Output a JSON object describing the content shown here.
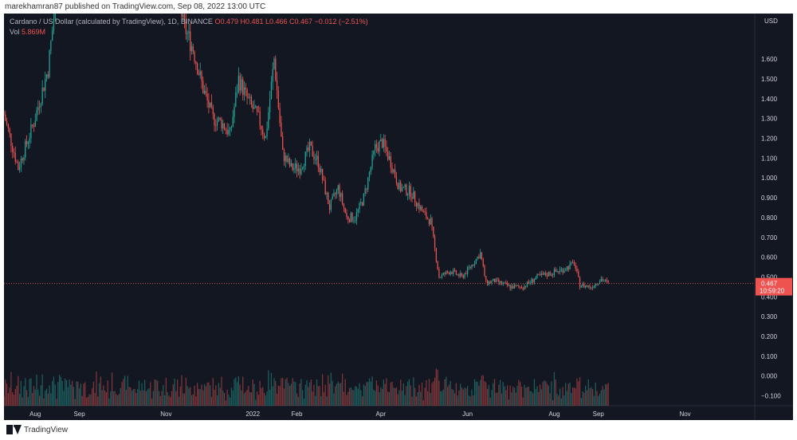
{
  "caption": "marekhamran87 published on TradingView.com, Sep 08, 2022 13:00 UTC",
  "legend": {
    "symbol": "Cardano / US Dollar (calculated by TradingView), 1D, BINANCE",
    "ohlc": "O0.479 H0.481 L0.466 C0.467 −0.012 (−2.51%)",
    "vol_label": "Vol",
    "vol_value": "5.869M"
  },
  "footer": {
    "brand": "TradingView"
  },
  "colors": {
    "up": "#26a69a",
    "down": "#ef5350",
    "bg": "#131722",
    "axis_text": "#d1d4dc",
    "price_line": "#ef5350"
  },
  "chart_data": {
    "type": "candlestick",
    "title": "Cardano / US Dollar (calculated by TradingView), 1D, BINANCE",
    "y_unit": "USD",
    "ylim": [
      -0.15,
      1.83
    ],
    "y_ticks": [
      -0.1,
      0.0,
      0.1,
      0.2,
      0.3,
      0.4,
      0.5,
      0.6,
      0.7,
      0.8,
      0.9,
      1.0,
      1.1,
      1.2,
      1.3,
      1.4,
      1.5,
      1.6
    ],
    "y_tick_labels": [
      "−0.100",
      "0.000",
      "0.100",
      "0.200",
      "0.300",
      "0.400",
      "0.500",
      "0.600",
      "0.700",
      "0.800",
      "0.900",
      "1.000",
      "1.100",
      "1.200",
      "1.300",
      "1.400",
      "1.500",
      "1.600"
    ],
    "x_labels": [
      {
        "date": "2021-08-01",
        "label": "Aug"
      },
      {
        "date": "2021-09-01",
        "label": "Sep"
      },
      {
        "date": "2021-11-01",
        "label": "Nov"
      },
      {
        "date": "2022-01-01",
        "label": "2022"
      },
      {
        "date": "2022-02-01",
        "label": "Feb"
      },
      {
        "date": "2022-04-01",
        "label": "Apr"
      },
      {
        "date": "2022-06-01",
        "label": "Jun"
      },
      {
        "date": "2022-08-01",
        "label": "Aug"
      },
      {
        "date": "2022-09-01",
        "label": "Sep"
      },
      {
        "date": "2022-11-01",
        "label": "Nov"
      }
    ],
    "x_range": [
      "2021-07-10",
      "2022-12-20"
    ],
    "price_series": [
      {
        "date": "2021-07-10",
        "close": 1.32
      },
      {
        "date": "2021-07-20",
        "close": 1.05
      },
      {
        "date": "2021-07-31",
        "close": 1.28
      },
      {
        "date": "2021-08-10",
        "close": 1.55
      },
      {
        "date": "2021-08-20",
        "close": 2.2
      },
      {
        "date": "2021-09-02",
        "close": 2.9
      },
      {
        "date": "2021-09-20",
        "close": 2.2
      },
      {
        "date": "2021-10-05",
        "close": 2.2
      },
      {
        "date": "2021-10-25",
        "close": 2.1
      },
      {
        "date": "2021-11-08",
        "close": 2.0
      },
      {
        "date": "2021-11-13",
        "close": 1.78
      },
      {
        "date": "2021-11-20",
        "close": 1.65
      },
      {
        "date": "2021-11-27",
        "close": 1.45
      },
      {
        "date": "2021-12-04",
        "close": 1.3
      },
      {
        "date": "2021-12-10",
        "close": 1.28
      },
      {
        "date": "2021-12-16",
        "close": 1.22
      },
      {
        "date": "2021-12-22",
        "close": 1.5
      },
      {
        "date": "2021-12-28",
        "close": 1.4
      },
      {
        "date": "2022-01-05",
        "close": 1.3
      },
      {
        "date": "2022-01-10",
        "close": 1.2
      },
      {
        "date": "2022-01-16",
        "close": 1.6
      },
      {
        "date": "2022-01-22",
        "close": 1.12
      },
      {
        "date": "2022-01-28",
        "close": 1.05
      },
      {
        "date": "2022-02-03",
        "close": 1.05
      },
      {
        "date": "2022-02-10",
        "close": 1.15
      },
      {
        "date": "2022-02-16",
        "close": 1.08
      },
      {
        "date": "2022-02-24",
        "close": 0.85
      },
      {
        "date": "2022-03-02",
        "close": 0.95
      },
      {
        "date": "2022-03-08",
        "close": 0.8
      },
      {
        "date": "2022-03-14",
        "close": 0.8
      },
      {
        "date": "2022-03-20",
        "close": 0.9
      },
      {
        "date": "2022-03-28",
        "close": 1.15
      },
      {
        "date": "2022-04-02",
        "close": 1.18
      },
      {
        "date": "2022-04-08",
        "close": 1.08
      },
      {
        "date": "2022-04-14",
        "close": 0.95
      },
      {
        "date": "2022-04-22",
        "close": 0.93
      },
      {
        "date": "2022-05-01",
        "close": 0.82
      },
      {
        "date": "2022-05-06",
        "close": 0.78
      },
      {
        "date": "2022-05-12",
        "close": 0.5
      },
      {
        "date": "2022-05-20",
        "close": 0.53
      },
      {
        "date": "2022-05-28",
        "close": 0.5
      },
      {
        "date": "2022-06-04",
        "close": 0.56
      },
      {
        "date": "2022-06-10",
        "close": 0.62
      },
      {
        "date": "2022-06-14",
        "close": 0.47
      },
      {
        "date": "2022-06-20",
        "close": 0.48
      },
      {
        "date": "2022-07-01",
        "close": 0.45
      },
      {
        "date": "2022-07-10",
        "close": 0.45
      },
      {
        "date": "2022-07-20",
        "close": 0.5
      },
      {
        "date": "2022-07-30",
        "close": 0.52
      },
      {
        "date": "2022-08-08",
        "close": 0.54
      },
      {
        "date": "2022-08-15",
        "close": 0.57
      },
      {
        "date": "2022-08-19",
        "close": 0.46
      },
      {
        "date": "2022-08-27",
        "close": 0.45
      },
      {
        "date": "2022-09-03",
        "close": 0.49
      },
      {
        "date": "2022-09-08",
        "close": 0.467
      }
    ],
    "last_price": {
      "value": 0.467,
      "label": "0.467",
      "countdown": "10:59:20"
    }
  }
}
